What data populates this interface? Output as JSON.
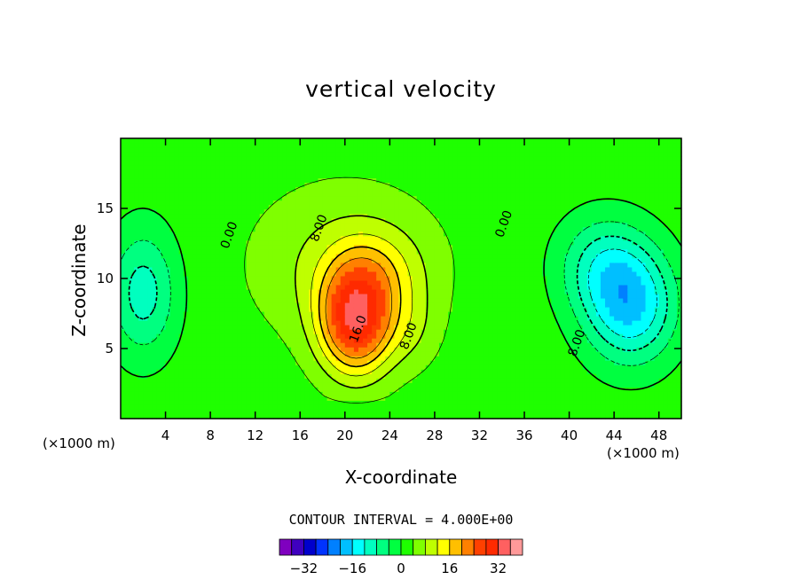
{
  "chart_data": {
    "type": "heatmap",
    "title": "vertical velocity",
    "xlabel": "X-coordinate",
    "ylabel": "Z-coordinate",
    "x_unit_left": "(×1000 m)",
    "x_unit_right": "(×1000 m)",
    "xlim": [
      0,
      50
    ],
    "ylim": [
      0,
      20
    ],
    "x_ticks": [
      "4",
      "8",
      "12",
      "16",
      "20",
      "24",
      "28",
      "32",
      "36",
      "40",
      "44",
      "48"
    ],
    "y_ticks": [
      "5",
      "10",
      "15"
    ],
    "contour_interval_text": "CONTOUR INTERVAL = 4.000E+00",
    "contour_interval": 4,
    "contour_labels": [
      {
        "text": "0.00",
        "x": 10,
        "z": 13
      },
      {
        "text": "8.00",
        "x": 18,
        "z": 13.5
      },
      {
        "text": "16.0",
        "x": 21.5,
        "z": 6.3
      },
      {
        "text": "8.00",
        "x": 26,
        "z": 5.8
      },
      {
        "text": "0.00",
        "x": 34.5,
        "z": 13.8
      },
      {
        "text": "8.00",
        "x": 41,
        "z": 5.3
      }
    ],
    "field_peaks": [
      {
        "x": 21,
        "z": 7,
        "amp": 27,
        "sx": 3.2,
        "sz": 3.8
      },
      {
        "x": 23,
        "z": 10.5,
        "amp": 6,
        "sx": 4.0,
        "sz": 3.0
      },
      {
        "x": 20,
        "z": 11,
        "amp": 7,
        "sx": 8.0,
        "sz": 5.5
      },
      {
        "x": 26,
        "z": 6.5,
        "amp": 4,
        "sx": 2.5,
        "sz": 3.0
      },
      {
        "x": 45.5,
        "z": 8,
        "amp": -18,
        "sx": 4.0,
        "sz": 4.0
      },
      {
        "x": 43,
        "z": 11,
        "amp": -10,
        "sx": 4.0,
        "sz": 3.5
      },
      {
        "x": 2,
        "z": 9,
        "amp": -12,
        "sx": 3.0,
        "sz": 4.5
      }
    ],
    "colorbar": {
      "levels": [
        -36,
        -32,
        -28,
        -24,
        -20,
        -16,
        -12,
        -8,
        -4,
        0,
        4,
        8,
        12,
        16,
        20,
        24,
        28,
        32,
        36
      ],
      "colors": [
        "#7f00bf",
        "#3f00bf",
        "#0000cc",
        "#0033ff",
        "#0080ff",
        "#00bfff",
        "#00ffff",
        "#00ffbf",
        "#00ff80",
        "#00ff40",
        "#1fff00",
        "#7fff00",
        "#bfff00",
        "#ffff00",
        "#ffbf00",
        "#ff8000",
        "#ff4000",
        "#ff2a00",
        "#ff6060",
        "#ff9999"
      ],
      "tick_labels": [
        "−32",
        "−16",
        "0",
        "16",
        "32"
      ],
      "tick_values": [
        -32,
        -16,
        0,
        16,
        32
      ]
    }
  }
}
